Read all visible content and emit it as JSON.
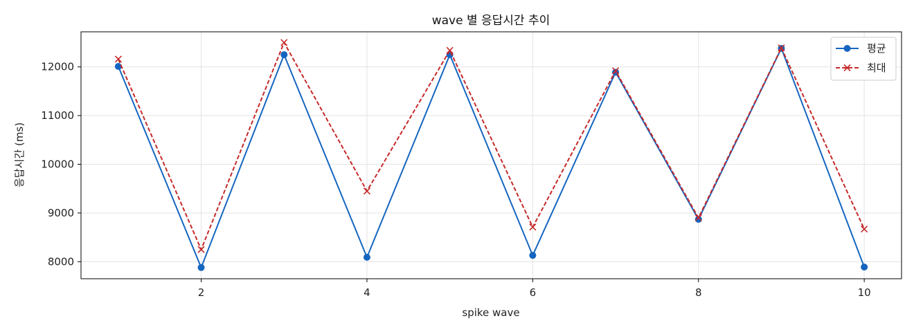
{
  "chart_data": {
    "type": "line",
    "title": "wave 별 응답시간 추이",
    "xlabel": "spike wave",
    "ylabel": "응답시간 (ms)",
    "x": [
      1,
      2,
      3,
      4,
      5,
      6,
      7,
      8,
      9,
      10
    ],
    "xlim": [
      0.55,
      10.45
    ],
    "ylim": [
      7650,
      12720
    ],
    "xticks": [
      2,
      4,
      6,
      8,
      10
    ],
    "yticks": [
      8000,
      9000,
      10000,
      11000,
      12000
    ],
    "grid": true,
    "legend_position": "top-right",
    "series": [
      {
        "name": "평균",
        "color": "#1565c0",
        "line_style": "solid",
        "marker": "circle",
        "values": [
          12010,
          7880,
          12250,
          8090,
          12250,
          8130,
          11890,
          8870,
          12380,
          7890
        ]
      },
      {
        "name": "최대",
        "color": "#c62828",
        "line_style": "dashed",
        "marker": "x",
        "values": [
          12160,
          8250,
          12500,
          9450,
          12340,
          8710,
          11920,
          8900,
          12390,
          8670
        ]
      }
    ]
  }
}
